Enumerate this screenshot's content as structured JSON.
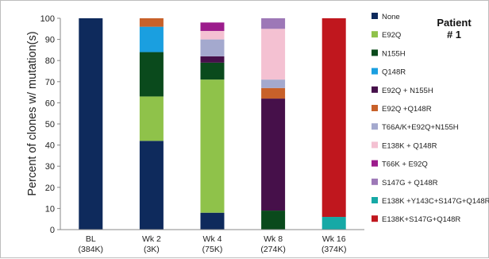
{
  "chart_data": {
    "type": "bar",
    "stacked": true,
    "categories": [
      "BL",
      "Wk 2",
      "Wk 4",
      "Wk 8",
      "Wk 16"
    ],
    "category_sublabels": [
      "(384K)",
      "(3K)",
      "(75K)",
      "(274K)",
      "(374K)"
    ],
    "ylabel": "Percent of clones w/ mutation(s)",
    "xlabel": "",
    "ylim": [
      0,
      100
    ],
    "yticks": [
      0,
      10,
      20,
      30,
      40,
      50,
      60,
      70,
      80,
      90,
      100
    ],
    "grid": false,
    "legend_position": "right",
    "annotation_line1": "Patient",
    "annotation_line2": "# 1",
    "series": [
      {
        "name": "None",
        "color": "#0e2a5c",
        "values": [
          100,
          42,
          8,
          0,
          0
        ]
      },
      {
        "name": "E92Q",
        "color": "#8fc24a",
        "values": [
          0,
          21,
          63,
          0,
          0
        ]
      },
      {
        "name": "N155H",
        "color": "#0a4a1c",
        "values": [
          0,
          21,
          8,
          9,
          0
        ]
      },
      {
        "name": "Q148R",
        "color": "#1a9fe0",
        "values": [
          0,
          12,
          0,
          0,
          0
        ]
      },
      {
        "name": "E92Q + N155H",
        "color": "#46104a",
        "values": [
          0,
          0,
          3,
          53,
          0
        ]
      },
      {
        "name": "E92Q +Q148R",
        "color": "#c8612a",
        "values": [
          0,
          4,
          0,
          5,
          0
        ]
      },
      {
        "name": "T66A/K+E92Q+N155H",
        "color": "#a4a9ce",
        "values": [
          0,
          0,
          8,
          4,
          0
        ]
      },
      {
        "name": "E138K + Q148R",
        "color": "#f4c1d2",
        "values": [
          0,
          0,
          4,
          24,
          0
        ]
      },
      {
        "name": "T66K + E92Q",
        "color": "#9c1c8c",
        "values": [
          0,
          0,
          4,
          0,
          0
        ]
      },
      {
        "name": "S147G + Q148R",
        "color": "#9d78b7",
        "values": [
          0,
          0,
          0,
          5,
          0
        ]
      },
      {
        "name": "E138K +Y143C+S147G+Q148R",
        "color": "#16a9a6",
        "values": [
          0,
          0,
          0,
          0,
          6
        ]
      },
      {
        "name": "E138K+S147G+Q148R",
        "color": "#c0171e",
        "values": [
          0,
          0,
          0,
          0,
          94
        ]
      }
    ]
  }
}
